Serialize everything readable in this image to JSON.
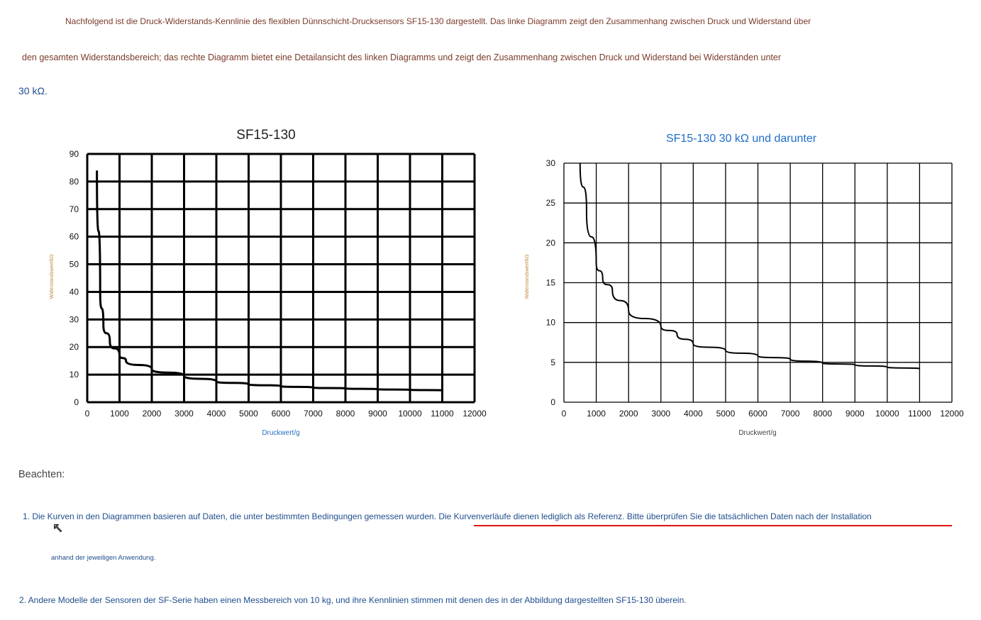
{
  "intro": {
    "line1": "Nachfolgend ist die Druck-Widerstands-Kennlinie des flexiblen Dünnschicht-Drucksensors SF15-130 dargestellt. Das linke Diagramm zeigt den Zusammenhang zwischen Druck und Widerstand über",
    "line2": "den gesamten Widerstandsbereich; das rechte Diagramm bietet eine Detailansicht des linken Diagramms und zeigt den Zusammenhang zwischen Druck und Widerstand bei Widerständen unter",
    "line3": "30 kΩ."
  },
  "chart_data": [
    {
      "type": "line",
      "title": "SF15-130",
      "xlabel": "Druckwert/g",
      "ylabel": "Widerstandswert/kΩ",
      "xlim": [
        0,
        12000
      ],
      "ylim": [
        0,
        90
      ],
      "xticks": [
        0,
        1000,
        2000,
        3000,
        4000,
        5000,
        6000,
        7000,
        8000,
        9000,
        10000,
        11000,
        12000
      ],
      "yticks": [
        0,
        10,
        20,
        30,
        40,
        50,
        60,
        70,
        80,
        90
      ],
      "grid": true,
      "x": [
        300,
        400,
        500,
        700,
        1000,
        1200,
        2000,
        3000,
        4000,
        5000,
        6000,
        7000,
        8000,
        9000,
        10000,
        11000
      ],
      "y": [
        84,
        40,
        28,
        22,
        17,
        15,
        12,
        9.5,
        7.5,
        6.5,
        5.8,
        5.3,
        5,
        4.7,
        4.5,
        4.3
      ]
    },
    {
      "type": "line",
      "title": "SF15-130 30 kΩ und darunter",
      "xlabel": "Druckwert/g",
      "ylabel": "Widerstandswert/kΩ",
      "xlim": [
        0,
        12000
      ],
      "ylim": [
        0,
        30
      ],
      "xticks": [
        0,
        1000,
        2000,
        3000,
        4000,
        5000,
        6000,
        7000,
        8000,
        9000,
        10000,
        11000,
        12000
      ],
      "yticks": [
        0,
        5,
        10,
        15,
        20,
        25,
        30
      ],
      "grid": true,
      "x": [
        500,
        700,
        1000,
        1200,
        1500,
        2000,
        3000,
        3500,
        4000,
        5000,
        6000,
        7000,
        8000,
        9000,
        10000,
        11000
      ],
      "y": [
        30,
        24,
        17.5,
        15.5,
        14,
        11.5,
        9.5,
        8.5,
        7.3,
        6.5,
        5.8,
        5.4,
        4.9,
        4.7,
        4.4,
        4.2
      ]
    }
  ],
  "notes": {
    "heading": "Beachten:",
    "n1a": "1. Die Kurven in den Diagrammen basieren auf Daten, die unter bestimmten Bedingungen gemessen wurden. Die Kurvenverläufe dienen lediglich als Referenz. Bitte überprüfen Sie die tatsächlichen Daten nach der Installation",
    "n1b": "anhand der jeweiligen Anwendung.",
    "n2": "2. Andere Modelle der Sensoren der SF-Serie haben einen Messbereich von 10 kg, und ihre Kennlinien stimmen mit denen des in der Abbildung dargestellten SF15-130 überein."
  }
}
